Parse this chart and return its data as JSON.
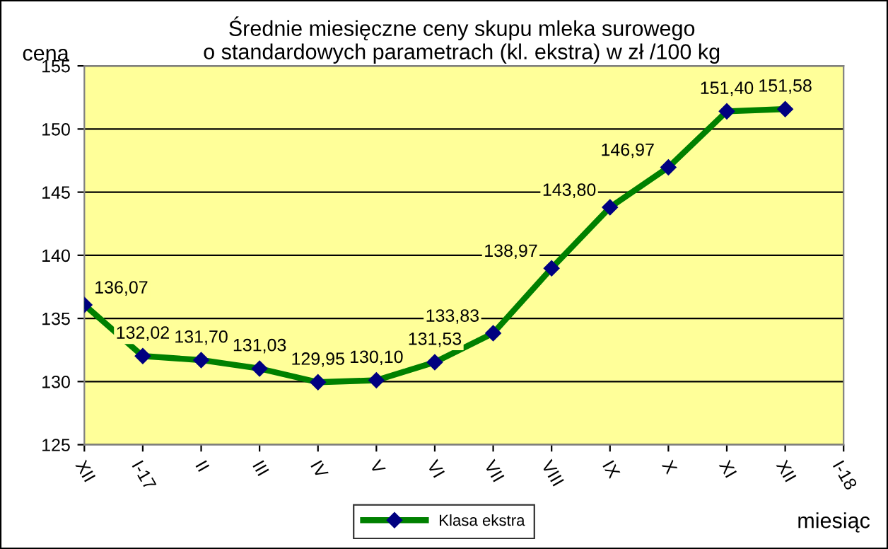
{
  "chart_data": {
    "type": "line",
    "title": "Średnie miesięczne ceny skupu mleka surowego\no standardowych parametrach (kl. ekstra) w zł /100 kg",
    "ylabel": "cena",
    "xlabel": "miesiąc",
    "categories": [
      "XII",
      "I-17",
      "II",
      "III",
      "IV",
      "V",
      "VI",
      "VII",
      "VIII",
      "IX",
      "X",
      "XI",
      "XII",
      "I-18"
    ],
    "series": [
      {
        "name": "Klasa ekstra",
        "color": "#008000",
        "values": [
          136.07,
          132.02,
          131.7,
          131.03,
          129.95,
          130.1,
          131.53,
          133.83,
          138.97,
          143.8,
          146.97,
          151.4,
          151.58,
          null
        ],
        "value_labels": [
          "136,07",
          "132,02",
          "131,70",
          "131,03",
          "129,95",
          "130,10",
          "131,53",
          "133,83",
          "138,97",
          "143,80",
          "146,97",
          "151,40",
          "151,58",
          null
        ]
      }
    ],
    "ylim": [
      125,
      155
    ],
    "yticks": [
      125,
      130,
      135,
      140,
      145,
      150,
      155
    ],
    "grid": "y",
    "legend": "bottom",
    "marker": "diamond",
    "line_style": "solid"
  }
}
